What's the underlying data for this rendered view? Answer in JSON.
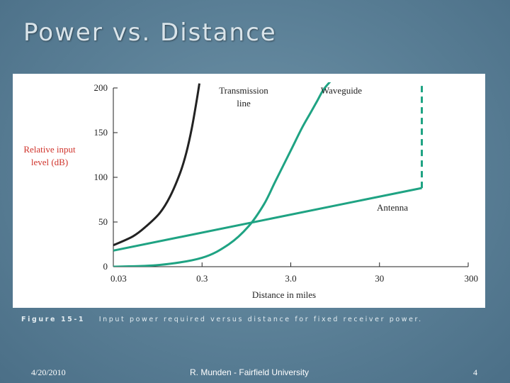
{
  "slide": {
    "title": "Power vs. Distance",
    "caption_number": "Figure 15-1",
    "caption_text": "Input power required versus distance for fixed receiver power.",
    "footer_date": "4/20/2010",
    "footer_author": "R. Munden - Fairfield University",
    "footer_page": "4"
  },
  "chart_data": {
    "type": "line",
    "title": "",
    "xlabel": "Distance in miles",
    "ylabel": [
      "Relative input",
      "level (dB)"
    ],
    "x_scale": "log",
    "xlim": [
      0.03,
      300
    ],
    "ylim": [
      0,
      200
    ],
    "x_ticks": [
      0.03,
      0.3,
      3.0,
      30,
      300
    ],
    "x_tick_labels": [
      "0.03",
      "0.3",
      "3.0",
      "30",
      "300"
    ],
    "y_ticks": [
      0,
      50,
      100,
      150,
      200
    ],
    "y_tick_labels": [
      "0",
      "50",
      "100",
      "150",
      "200"
    ],
    "grid": false,
    "series": [
      {
        "name": [
          "Transmission",
          "line"
        ],
        "color": "#222222",
        "dashed": false,
        "x": [
          0.03,
          0.05,
          0.07,
          0.1,
          0.13,
          0.17,
          0.2,
          0.23,
          0.26,
          0.28
        ],
        "y": [
          24,
          34,
          45,
          60,
          78,
          105,
          128,
          155,
          185,
          205
        ]
      },
      {
        "name": [
          "Waveguide"
        ],
        "color": "#1fa383",
        "dashed": false,
        "x": [
          0.03,
          0.1,
          0.3,
          0.6,
          1.0,
          1.5,
          2.0,
          3.0,
          4.0,
          5.0,
          6.0,
          7.0,
          8.5
        ],
        "y": [
          0,
          2,
          10,
          25,
          45,
          70,
          95,
          130,
          155,
          172,
          186,
          198,
          208
        ]
      },
      {
        "name": [
          "Antenna"
        ],
        "color": "#1fa383",
        "dashed": false,
        "x": [
          0.03,
          90
        ],
        "y": [
          18,
          88
        ]
      },
      {
        "name": [],
        "color": "#1fa383",
        "dashed": true,
        "x": [
          90,
          90
        ],
        "y": [
          88,
          205
        ]
      }
    ]
  }
}
